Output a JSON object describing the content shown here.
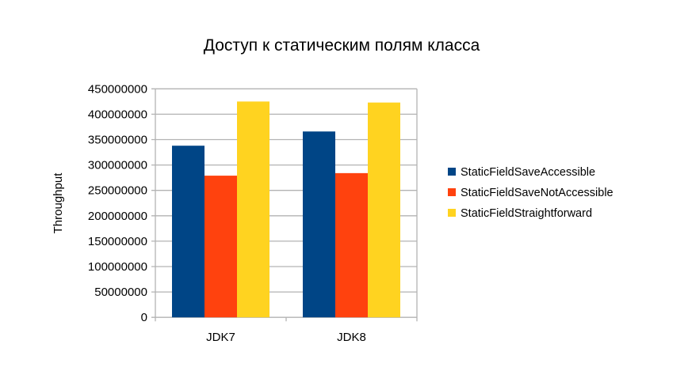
{
  "chart_data": {
    "type": "bar",
    "title": "Доступ к статическим полям класса",
    "xlabel": "",
    "ylabel": "Throughput",
    "categories": [
      "JDK7",
      "JDK8"
    ],
    "series": [
      {
        "name": "StaticFieldSaveAccessible",
        "color": "#004586",
        "values": [
          338000000,
          366000000
        ]
      },
      {
        "name": "StaticFieldSaveNotAccessible",
        "color": "#ff420e",
        "values": [
          279000000,
          284000000
        ]
      },
      {
        "name": "StaticFieldStraightforward",
        "color": "#ffd320",
        "values": [
          425000000,
          423000000
        ]
      }
    ],
    "ylim": [
      0,
      450000000
    ],
    "yticks": [
      "0",
      "50000000",
      "100000000",
      "150000000",
      "200000000",
      "250000000",
      "300000000",
      "350000000",
      "400000000",
      "450000000"
    ],
    "grid": true,
    "legend": "right"
  }
}
